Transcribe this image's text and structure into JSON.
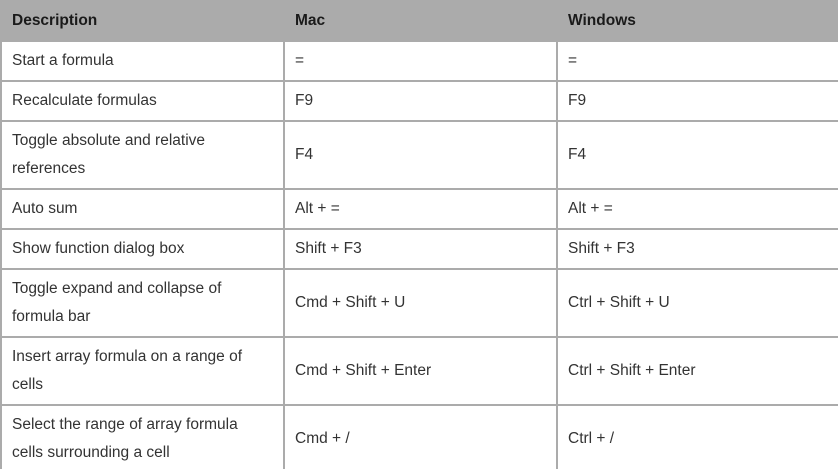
{
  "table": {
    "headers": [
      "Description",
      "Mac",
      "Windows"
    ],
    "rows": [
      {
        "description": "Start a formula",
        "mac": "=",
        "windows": "="
      },
      {
        "description": "Recalculate formulas",
        "mac": "F9",
        "windows": "F9"
      },
      {
        "description": "Toggle absolute and relative references",
        "mac": "F4",
        "windows": "F4"
      },
      {
        "description": "Auto sum",
        "mac": "Alt + =",
        "windows": "Alt + ="
      },
      {
        "description": "Show function dialog box",
        "mac": "Shift + F3",
        "windows": "Shift + F3"
      },
      {
        "description": "Toggle expand and collapse of formula bar",
        "mac": "Cmd + Shift + U",
        "windows": "Ctrl + Shift + U"
      },
      {
        "description": "Insert array formula on a range of cells",
        "mac": "Cmd + Shift + Enter",
        "windows": "Ctrl + Shift + Enter"
      },
      {
        "description": "Select the range of array formula cells surrounding a cell",
        "mac": "Cmd + /",
        "windows": "Ctrl + /"
      }
    ]
  },
  "colors": {
    "header_bg": "#ababab",
    "border": "#ababab",
    "header_text": "#1a1a1a",
    "cell_text": "#333333",
    "cell_bg": "#ffffff"
  }
}
